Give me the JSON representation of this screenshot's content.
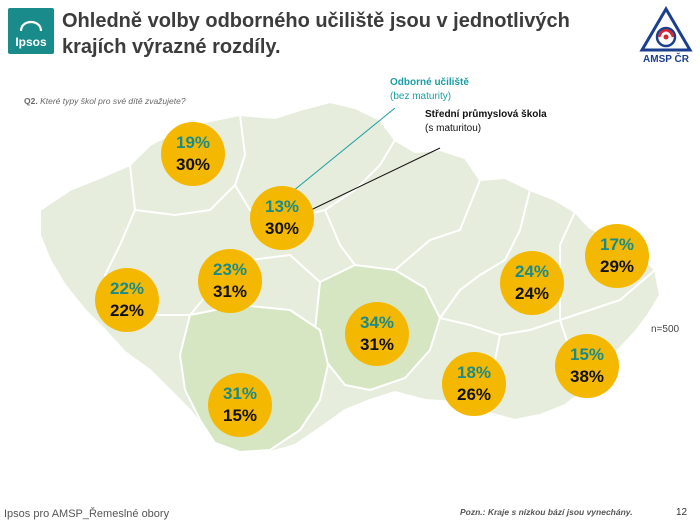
{
  "header": {
    "title_line1": "Ohledně volby odborného učiliště jsou v jednotlivých",
    "title_line2": "krajích výrazné rozdíly.",
    "ipsos_logo_text": "Ipsos",
    "amsp_logo_text": "AMSP ČR"
  },
  "question": {
    "code": "Q2.",
    "text": "Které typy škol pro své dítě zvažujete?"
  },
  "legend": {
    "series_a_label": "Odborné učiliště",
    "series_a_sub": "(bez maturity)",
    "series_b_label": "Střední průmyslová škola",
    "series_b_sub": "(s maturitou)"
  },
  "sample_size": "n=500",
  "colors": {
    "series_a": "#1a8b8b",
    "series_b": "#111111",
    "bubble": "#f5b800",
    "map_light": "#e6eddc",
    "map_highlight": "#d6e6c3"
  },
  "regions": [
    {
      "id": "ustecky",
      "a": "19%",
      "b": "30%"
    },
    {
      "id": "stredocesky",
      "a": "13%",
      "b": "30%"
    },
    {
      "id": "plzensky",
      "a": "22%",
      "b": "22%"
    },
    {
      "id": "praha",
      "a": "23%",
      "b": "31%"
    },
    {
      "id": "vysocina",
      "a": "34%",
      "b": "31%"
    },
    {
      "id": "jihocesky",
      "a": "31%",
      "b": "15%"
    },
    {
      "id": "olomoucky",
      "a": "24%",
      "b": "24%"
    },
    {
      "id": "moravskoslezsky",
      "a": "17%",
      "b": "29%"
    },
    {
      "id": "jihomoravsky",
      "a": "18%",
      "b": "26%"
    },
    {
      "id": "zlinsky",
      "a": "15%",
      "b": "38%"
    }
  ],
  "footer": {
    "source": "Ipsos pro AMSP_Řemeslné obory",
    "note": "Pozn.: Kraje s nízkou bází jsou vynechány.",
    "page": "12"
  }
}
